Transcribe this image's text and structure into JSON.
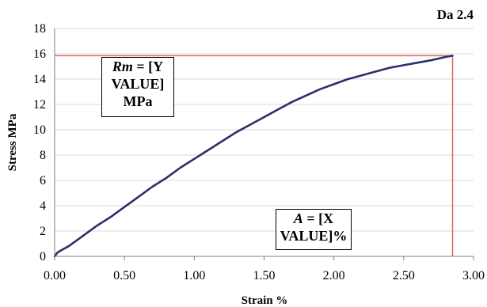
{
  "chart_data": {
    "type": "line",
    "title": "Da 2.4",
    "xlabel": "Strain %",
    "ylabel": "Stress MPa",
    "xlim": [
      0,
      3
    ],
    "ylim": [
      0,
      18
    ],
    "xticks": [
      "0.00",
      "0.50",
      "1.00",
      "1.50",
      "2.00",
      "2.50",
      "3.00"
    ],
    "yticks": [
      "0",
      "2",
      "4",
      "6",
      "8",
      "10",
      "12",
      "14",
      "16",
      "18"
    ],
    "grid": "horizontal",
    "series": [
      {
        "color": "#2b2f6b",
        "x": [
          0.0,
          0.02,
          0.05,
          0.1,
          0.15,
          0.2,
          0.3,
          0.4,
          0.5,
          0.6,
          0.7,
          0.8,
          0.9,
          1.0,
          1.1,
          1.2,
          1.3,
          1.4,
          1.5,
          1.6,
          1.7,
          1.8,
          1.9,
          2.0,
          2.1,
          2.2,
          2.3,
          2.4,
          2.5,
          2.6,
          2.7,
          2.8,
          2.85
        ],
        "y": [
          0.0,
          0.3,
          0.5,
          0.8,
          1.2,
          1.6,
          2.4,
          3.1,
          3.9,
          4.7,
          5.5,
          6.2,
          7.0,
          7.7,
          8.4,
          9.1,
          9.8,
          10.4,
          11.0,
          11.6,
          12.2,
          12.7,
          13.2,
          13.6,
          14.0,
          14.3,
          14.6,
          14.9,
          15.1,
          15.3,
          15.5,
          15.75,
          15.85
        ]
      }
    ],
    "reference_lines": {
      "color": "#e06666",
      "x": 2.85,
      "y": 15.85
    },
    "annotations": {
      "rm": {
        "symbol": "Rm",
        "line1": " = [Y",
        "line2": "VALUE]",
        "line3": "MPa"
      },
      "a": {
        "symbol": "A",
        "line1": " = [X",
        "line2": "VALUE]%"
      }
    }
  }
}
